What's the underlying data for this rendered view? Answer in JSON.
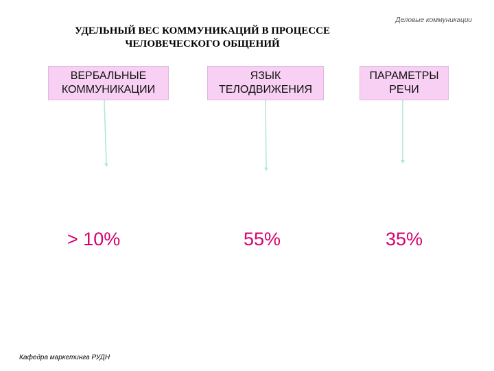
{
  "header": {
    "note": "Деловые коммуникации"
  },
  "title": "УДЕЛЬНЫЙ ВЕС КОММУНИКАЦИЙ В ПРОЦЕССЕ ЧЕЛОВЕЧЕСКОГО ОБЩЕНИЙ",
  "categories": [
    {
      "label": "ВЕРБАЛЬНЫЕ КОММУНИКАЦИИ",
      "value": "> 10%"
    },
    {
      "label": "ЯЗЫК ТЕЛОДВИЖЕНИЯ",
      "value": "55%"
    },
    {
      "label": "ПАРАМЕТРЫ РЕЧИ",
      "value": "35%"
    }
  ],
  "footer": {
    "text": "Кафедра маркетинга РУДН"
  },
  "colors": {
    "box_fill": "#f7d0f3",
    "arrow": "#aee6d8",
    "percent": "#d6006f"
  }
}
